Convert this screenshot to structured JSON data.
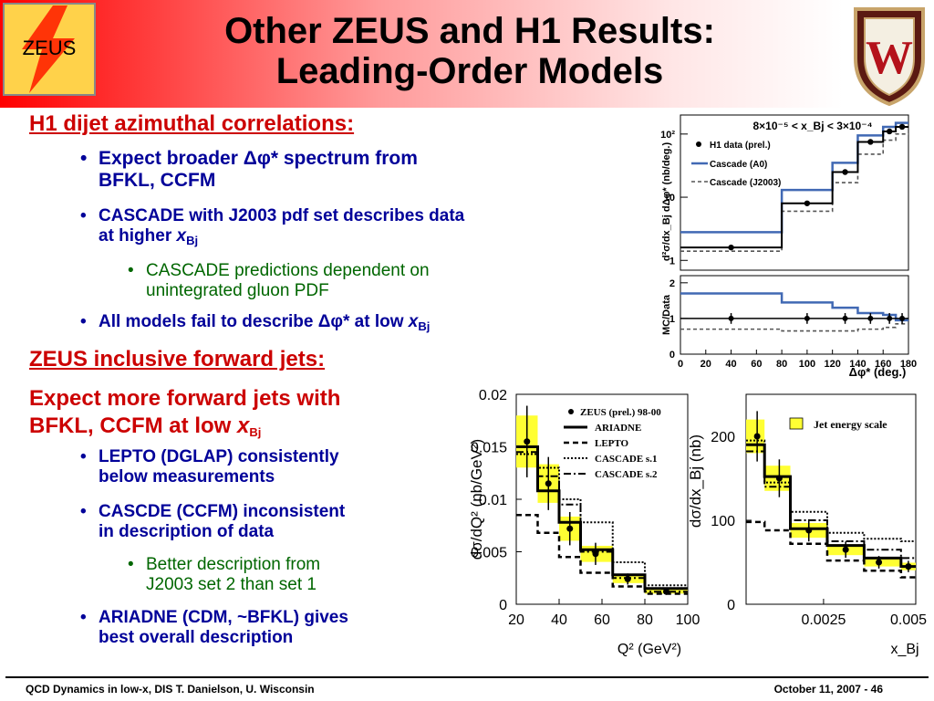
{
  "header": {
    "title_line1": "Other ZEUS and H1 Results:",
    "title_line2": "Leading-Order Models",
    "logo_text": "ZEUS",
    "seal_letter": "W"
  },
  "left": {
    "h1_heading": "H1 dijet azimuthal correlations:",
    "h1_b1_pre": "Expect broader ",
    "h1_b1_sym": "Δφ*",
    "h1_b1_post": " spectrum from",
    "h1_b1_line2": "BFKL, CCFM",
    "h1_b2_line1": "CASCADE with J2003 pdf set describes data",
    "h1_b2_line2_pre": "at higher ",
    "h1_b2_x": "x",
    "h1_b2_sub": "Bj",
    "h1_sub1_line1": "CASCADE predictions dependent on",
    "h1_sub1_line2": "unintegrated gluon PDF",
    "h1_b3_pre": "All models fail to describe ",
    "h1_b3_sym": "Δφ*",
    "h1_b3_mid": " at low ",
    "h1_b3_x": "x",
    "h1_b3_sub": "Bj",
    "zeus_heading": "ZEUS inclusive forward jets:",
    "zeus_expect_line1": "Expect more forward jets with",
    "zeus_expect_line2_pre": "BFKL, CCFM at low ",
    "zeus_expect_x": "x",
    "zeus_expect_sub": "Bj",
    "z_b1_line1": "LEPTO (DGLAP) consistently",
    "z_b1_line2": "below measurements",
    "z_b2_line1": "CASCDE (CCFM) inconsistent",
    "z_b2_line2": "in description of data",
    "z_sub1_line1": "Better description from",
    "z_sub1_line2": "J2003 set 2 than set 1",
    "z_b3_line1": "ARIADNE (CDM, ~BFKL) gives",
    "z_b3_line2": "best overall description",
    "bullet": "•"
  },
  "footer": {
    "left": "QCD Dynamics in low-x, DIS T. Danielson, U. Wisconsin",
    "right": "October 11, 2007 - 46"
  },
  "colors": {
    "heading_red": "#cc0000",
    "bullet_blue": "#000099",
    "sub_green": "#006600",
    "cascade_blue": "#4169b4"
  },
  "chart_data": [
    {
      "type": "line",
      "title": "8×10⁻⁵ < x_Bj < 3×10⁻⁴",
      "ylabel": "d²σ/dx_Bj dΔφ* (nb/deg.)",
      "xlabel": "Δφ* (deg.)",
      "yscale": "log",
      "ylim": [
        0.7,
        200
      ],
      "xlim": [
        0,
        180
      ],
      "y_ticks": [
        "1",
        "10",
        "10²"
      ],
      "legend": [
        "H1 data (prel.)",
        "Cascade (A0)",
        "Cascade (J2003)"
      ],
      "legend_placement": "top-right",
      "bin_edges": [
        0,
        80,
        120,
        140,
        160,
        170,
        180
      ],
      "series": [
        {
          "name": "H1 data (prel.)",
          "x": [
            40,
            100,
            130,
            150,
            165,
            175
          ],
          "values": [
            1.6,
            8,
            25,
            75,
            110,
            130
          ]
        },
        {
          "name": "Cascade (A0)",
          "values": [
            2.8,
            13,
            35,
            95,
            130,
            150
          ]
        },
        {
          "name": "Cascade (J2003)",
          "values": [
            1.4,
            6,
            17,
            48,
            80,
            100
          ]
        }
      ]
    },
    {
      "type": "line",
      "ylabel": "MC/Data",
      "xlabel": "Δφ* (deg.)",
      "ylim": [
        0,
        2.2
      ],
      "xlim": [
        0,
        180
      ],
      "y_ticks": [
        "0",
        "1",
        "2"
      ],
      "x_ticks": [
        "0",
        "20",
        "40",
        "60",
        "80",
        "100",
        "120",
        "140",
        "160",
        "180"
      ],
      "bin_edges": [
        0,
        80,
        120,
        140,
        160,
        170,
        180
      ],
      "series": [
        {
          "name": "Data",
          "x": [
            40,
            100,
            130,
            150,
            165,
            175
          ],
          "values": [
            1,
            1,
            1,
            1,
            1,
            1
          ]
        },
        {
          "name": "Cascade (A0)",
          "values": [
            1.7,
            1.45,
            1.3,
            1.15,
            1.1,
            0.95
          ]
        },
        {
          "name": "Cascade (J2003)",
          "values": [
            0.7,
            0.65,
            0.65,
            0.7,
            0.75,
            0.85
          ]
        }
      ]
    },
    {
      "type": "line",
      "ylabel": "dσ/dQ² (nb/GeV²)",
      "xlabel": "Q² (GeV²)",
      "ylim": [
        0,
        0.02
      ],
      "xlim": [
        20,
        100
      ],
      "y_ticks": [
        "0",
        "0.005",
        "0.01",
        "0.015",
        "0.02"
      ],
      "x_ticks": [
        "20",
        "40",
        "60",
        "80",
        "100"
      ],
      "legend": [
        "ZEUS (prel.) 98-00",
        "ARIADNE",
        "LEPTO",
        "CASCADE s.1",
        "CASCADE s.2"
      ],
      "legend_placement": "top-right",
      "bin_edges": [
        20,
        30,
        40,
        50,
        65,
        80,
        100
      ],
      "series": [
        {
          "name": "ZEUS (prel.) 98-00",
          "x": [
            25,
            35,
            45,
            57,
            72,
            90
          ],
          "values": [
            0.0155,
            0.0115,
            0.0072,
            0.0048,
            0.0024,
            0.0012
          ]
        },
        {
          "name": "ARIADNE",
          "values": [
            0.015,
            0.0108,
            0.0078,
            0.0052,
            0.0028,
            0.0015
          ]
        },
        {
          "name": "LEPTO",
          "values": [
            0.0085,
            0.0068,
            0.0045,
            0.003,
            0.0017,
            0.001
          ]
        },
        {
          "name": "CASCADE s.1",
          "values": [
            0.0143,
            0.013,
            0.01,
            0.0078,
            0.004,
            0.0018
          ]
        },
        {
          "name": "CASCADE s.2",
          "values": [
            0.0145,
            0.0122,
            0.0095,
            0.005,
            0.0025,
            0.0012
          ]
        }
      ]
    },
    {
      "type": "line",
      "ylabel": "dσ/dx_Bj (nb)",
      "xlabel": "x_Bj",
      "ylim": [
        0,
        250
      ],
      "xlim": [
        0.0004,
        0.005
      ],
      "y_ticks": [
        "0",
        "100",
        "200"
      ],
      "x_ticks": [
        "0.0025",
        "0.005"
      ],
      "legend": [
        "Jet energy scale"
      ],
      "legend_placement": "top-right",
      "bin_edges": [
        0.0004,
        0.0009,
        0.0016,
        0.0026,
        0.0036,
        0.0046,
        0.005
      ],
      "series": [
        {
          "name": "Data",
          "x": [
            0.0007,
            0.0013,
            0.0021,
            0.0031,
            0.004,
            0.0048
          ],
          "values": [
            200,
            150,
            88,
            65,
            50,
            45
          ]
        },
        {
          "name": "ARIADNE",
          "values": [
            190,
            152,
            90,
            70,
            55,
            45
          ]
        },
        {
          "name": "LEPTO",
          "values": [
            98,
            88,
            72,
            52,
            40,
            32
          ]
        },
        {
          "name": "CASCADE s.1",
          "values": [
            195,
            145,
            110,
            85,
            78,
            75
          ]
        },
        {
          "name": "CASCADE s.2",
          "values": [
            182,
            140,
            100,
            75,
            65,
            55
          ]
        }
      ]
    }
  ]
}
